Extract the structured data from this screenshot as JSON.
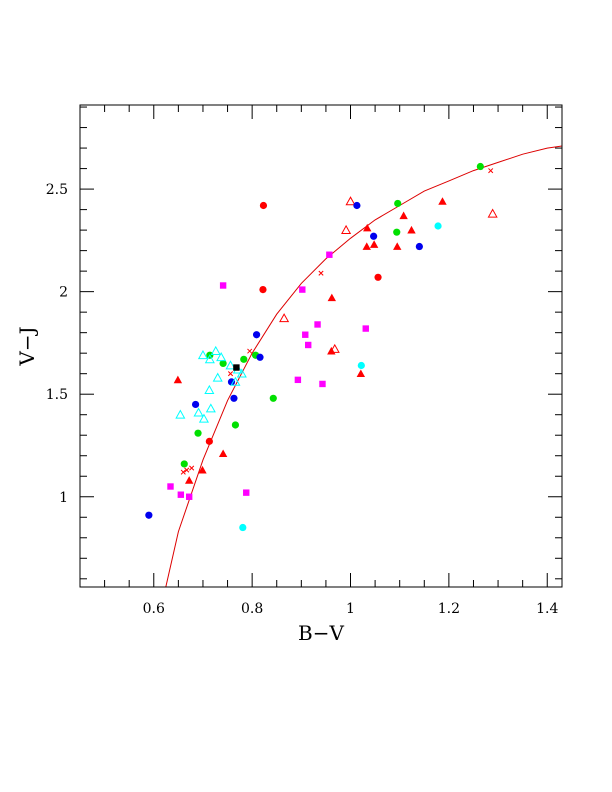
{
  "chart_data": {
    "type": "scatter",
    "xlabel": "B−V",
    "ylabel": "V−J",
    "xlim": [
      0.45,
      1.43
    ],
    "ylim": [
      0.56,
      2.91
    ],
    "xticks": [
      0.6,
      0.8,
      1,
      1.2,
      1.4
    ],
    "xtick_labels": [
      "0.6",
      "0.8",
      "1",
      "1.2",
      "1.4"
    ],
    "yticks": [
      1,
      1.5,
      2,
      2.5
    ],
    "ytick_labels": [
      "1",
      "1.5",
      "2",
      "2.5"
    ],
    "x_minor_step": 0.05,
    "y_minor_step": 0.1,
    "grid": false,
    "colors": {
      "red": "#ff0000",
      "green": "#00e000",
      "blue": "#0000ee",
      "magenta": "#ff00ff",
      "cyan": "#00ffff",
      "black": "#000000",
      "curve": "#dd0000"
    },
    "curve": {
      "x": [
        0.6245,
        0.65,
        0.7,
        0.75,
        0.8,
        0.85,
        0.9,
        0.95,
        1.0,
        1.05,
        1.1,
        1.15,
        1.2,
        1.25,
        1.3,
        1.35,
        1.4,
        1.43
      ],
      "y": [
        0.56,
        0.83,
        1.18,
        1.47,
        1.7,
        1.89,
        2.04,
        2.16,
        2.26,
        2.35,
        2.42,
        2.49,
        2.54,
        2.59,
        2.63,
        2.67,
        2.7,
        2.71
      ]
    },
    "series": [
      {
        "color": "red",
        "marker": "circle-filled",
        "points": [
          [
            0.823,
            2.42
          ],
          [
            0.822,
            2.01
          ],
          [
            1.056,
            2.07
          ],
          [
            0.713,
            1.27
          ]
        ]
      },
      {
        "color": "red",
        "marker": "triangle-filled",
        "points": [
          [
            1.187,
            2.44
          ],
          [
            1.034,
            2.31
          ],
          [
            1.108,
            2.37
          ],
          [
            1.033,
            2.22
          ],
          [
            1.048,
            2.23
          ],
          [
            1.124,
            2.3
          ],
          [
            1.095,
            2.22
          ],
          [
            0.962,
            1.97
          ],
          [
            0.961,
            1.71
          ],
          [
            1.021,
            1.6
          ],
          [
            0.649,
            1.57
          ],
          [
            0.741,
            1.21
          ],
          [
            0.699,
            1.13
          ],
          [
            0.672,
            1.08
          ]
        ]
      },
      {
        "color": "red",
        "marker": "triangle-open",
        "points": [
          [
            1.0,
            2.44
          ],
          [
            0.991,
            2.3
          ],
          [
            1.289,
            2.38
          ],
          [
            0.865,
            1.87
          ],
          [
            0.968,
            1.72
          ]
        ]
      },
      {
        "color": "red",
        "marker": "cross",
        "points": [
          [
            0.795,
            1.71
          ],
          [
            0.94,
            2.09
          ],
          [
            0.756,
            1.6
          ],
          [
            1.285,
            2.59
          ],
          [
            0.677,
            1.14
          ],
          [
            0.667,
            1.13
          ],
          [
            0.66,
            1.12
          ]
        ]
      },
      {
        "color": "green",
        "marker": "circle-filled",
        "points": [
          [
            1.264,
            2.61
          ],
          [
            1.096,
            2.43
          ],
          [
            1.094,
            2.29
          ],
          [
            0.714,
            1.69
          ],
          [
            0.783,
            1.67
          ],
          [
            0.807,
            1.69
          ],
          [
            0.741,
            1.65
          ],
          [
            0.843,
            1.48
          ],
          [
            0.766,
            1.35
          ],
          [
            0.69,
            1.31
          ],
          [
            0.662,
            1.16
          ]
        ]
      },
      {
        "color": "blue",
        "marker": "circle-filled",
        "points": [
          [
            1.013,
            2.42
          ],
          [
            1.047,
            2.27
          ],
          [
            1.14,
            2.22
          ],
          [
            0.809,
            1.79
          ],
          [
            0.816,
            1.68
          ],
          [
            0.758,
            1.56
          ],
          [
            0.763,
            1.48
          ],
          [
            0.685,
            1.45
          ],
          [
            0.59,
            0.91
          ]
        ]
      },
      {
        "color": "magenta",
        "marker": "square-filled",
        "points": [
          [
            0.741,
            2.03
          ],
          [
            0.957,
            2.18
          ],
          [
            0.902,
            2.01
          ],
          [
            0.933,
            1.84
          ],
          [
            0.908,
            1.79
          ],
          [
            1.031,
            1.82
          ],
          [
            0.914,
            1.74
          ],
          [
            0.893,
            1.57
          ],
          [
            0.943,
            1.55
          ],
          [
            0.788,
            1.02
          ],
          [
            0.634,
            1.05
          ],
          [
            0.655,
            1.01
          ],
          [
            0.672,
            1.0
          ]
        ]
      },
      {
        "color": "cyan",
        "marker": "circle-filled",
        "points": [
          [
            1.178,
            2.32
          ],
          [
            1.022,
            1.64
          ],
          [
            0.781,
            0.85
          ]
        ]
      },
      {
        "color": "cyan",
        "marker": "triangle-open",
        "points": [
          [
            0.7,
            1.69
          ],
          [
            0.726,
            1.71
          ],
          [
            0.714,
            1.67
          ],
          [
            0.737,
            1.68
          ],
          [
            0.756,
            1.64
          ],
          [
            0.771,
            1.62
          ],
          [
            0.779,
            1.6
          ],
          [
            0.73,
            1.58
          ],
          [
            0.766,
            1.56
          ],
          [
            0.713,
            1.52
          ],
          [
            0.654,
            1.4
          ],
          [
            0.691,
            1.41
          ],
          [
            0.702,
            1.38
          ],
          [
            0.716,
            1.43
          ]
        ]
      },
      {
        "color": "black",
        "marker": "square-filled",
        "points": [
          [
            0.768,
            1.63
          ]
        ]
      }
    ]
  }
}
